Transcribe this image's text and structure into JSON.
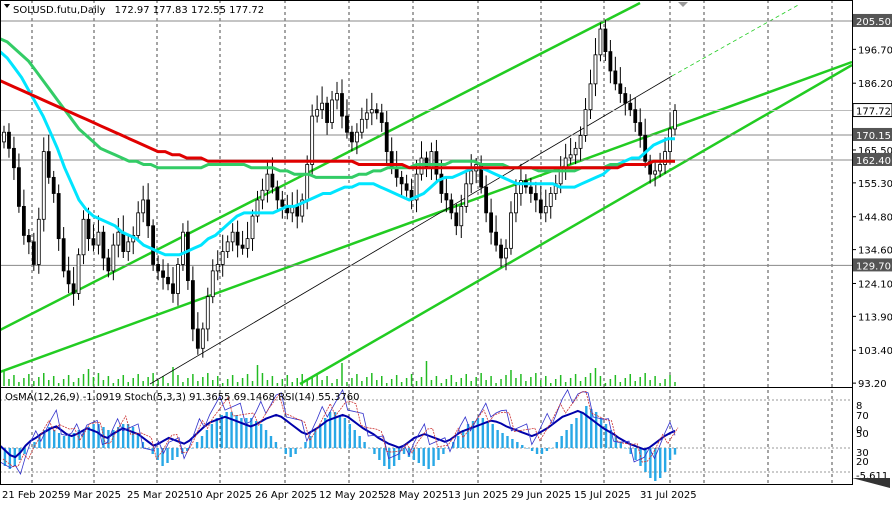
{
  "header": {
    "symbol": "SOLUSD.futu,Daily",
    "ohlc": "172.97 177.83 172.55 177.72"
  },
  "osc_header": "OsMA(12,26,9) -1.0919  Stoch(5,3,3) 91.3655 69.1468  RSI(14) 55.3760",
  "colors": {
    "up": "#000000",
    "down": "#000000",
    "ma_fast": "#00e5ff",
    "ma_mid": "#33cc66",
    "ma_slow": "#e00000",
    "channel": "#22cc22",
    "osma": "#29a8e6",
    "rsi": "#0000aa",
    "stoch_main": "#3333cc",
    "stoch_signal": "#cc3333",
    "tag_bg": "#555555",
    "volume": "#22bb22"
  },
  "chart_data": [
    {
      "type": "candlestick",
      "title": "SOLUSD.futu,Daily",
      "price_axis": [
        "205.50",
        "196.70",
        "186.20",
        "177.72",
        "170.15",
        "165.50",
        "162.40",
        "155.30",
        "144.80",
        "134.60",
        "129.70",
        "124.10",
        "113.90",
        "103.40",
        "93.20"
      ],
      "x_ticks": [
        "21 Feb 2025",
        "9 Mar 2025",
        "25 Mar 2025",
        "10 Apr 2025",
        "26 Apr 2025",
        "12 May 2025",
        "28 May 2025",
        "13 Jun 2025",
        "29 Jun 2025",
        "15 Jul 2025",
        "31 Jul 2025"
      ],
      "ylim": [
        92,
        212
      ],
      "horizontal_levels": [
        {
          "value": 205.5,
          "label": "205.50"
        },
        {
          "value": 170.15,
          "label": "170.15"
        },
        {
          "value": 162.4,
          "label": "162.40"
        },
        {
          "value": 129.7,
          "label": "129.70"
        }
      ],
      "current_price": {
        "value": 177.72,
        "label": "177.72"
      },
      "closes": [
        171,
        166,
        160,
        148,
        139,
        137,
        130,
        144,
        165,
        157,
        152,
        138,
        128,
        124,
        121,
        133,
        144,
        138,
        136,
        140,
        132,
        128,
        136,
        140,
        134,
        137,
        139,
        146,
        150,
        142,
        130,
        128,
        126,
        124,
        121,
        130,
        140,
        125,
        110,
        104,
        110,
        120,
        128,
        130,
        134,
        137,
        140,
        136,
        135,
        138,
        145,
        150,
        153,
        158,
        154,
        150,
        148,
        146,
        148,
        145,
        150,
        161,
        176,
        178,
        180,
        174,
        181,
        183,
        176,
        171,
        168,
        171,
        175,
        177,
        178,
        177,
        174,
        165,
        160,
        157,
        155,
        153,
        150,
        158,
        163,
        160,
        165,
        158,
        152,
        150,
        146,
        142,
        148,
        155,
        159,
        161,
        154,
        146,
        140,
        136,
        132,
        135,
        146,
        152,
        156,
        154,
        152,
        150,
        146,
        148,
        152,
        155,
        160,
        163,
        164,
        166,
        170,
        178,
        186,
        195,
        203,
        196,
        190,
        186,
        183,
        180,
        178,
        174,
        170,
        162,
        158,
        159,
        161,
        165,
        172,
        177.72
      ],
      "series": [
        {
          "name": "MA fast",
          "values": [
            196,
            194,
            191,
            188,
            184,
            180,
            176,
            171,
            166,
            160,
            155,
            150,
            147,
            145,
            144,
            143,
            142,
            140,
            139,
            138,
            136,
            135,
            134,
            133,
            133,
            133,
            134,
            135,
            136,
            138,
            139,
            141,
            143,
            145,
            146,
            146,
            146,
            146,
            146,
            147,
            148,
            148,
            149,
            150,
            151,
            152,
            152,
            153,
            154,
            154,
            155,
            155,
            155,
            154,
            153,
            152,
            151,
            150,
            151,
            152,
            154,
            156,
            157,
            157,
            158,
            159,
            160,
            160,
            159,
            158,
            157,
            156,
            155,
            155,
            155,
            155,
            155,
            155,
            154,
            154,
            154,
            155,
            156,
            157,
            158,
            160,
            161,
            162,
            163,
            163,
            165,
            167,
            168,
            169,
            169
          ]
        },
        {
          "name": "MA mid",
          "values": [
            200,
            199,
            197,
            195,
            193,
            190,
            187,
            184,
            181,
            178,
            175,
            172,
            170,
            168,
            166,
            165,
            164,
            163,
            162,
            162,
            161,
            161,
            160,
            160,
            160,
            160,
            160,
            160,
            160,
            161,
            161,
            161,
            161,
            161,
            161,
            160,
            160,
            160,
            160,
            159,
            159,
            158,
            158,
            158,
            157,
            157,
            157,
            157,
            157,
            157,
            158,
            158,
            159,
            159,
            160,
            160,
            160,
            160,
            161,
            161,
            161,
            161,
            161,
            162,
            162,
            162,
            162,
            161,
            161,
            161,
            161,
            160,
            160,
            160,
            160,
            159,
            159,
            159,
            159,
            159,
            159,
            160,
            160,
            160,
            160,
            161,
            161,
            161,
            161,
            161,
            161,
            162,
            162,
            162,
            162
          ]
        },
        {
          "name": "MA slow",
          "values": [
            187,
            186,
            185,
            184,
            183,
            182,
            181,
            180,
            179,
            178,
            177,
            176,
            175,
            174,
            173,
            172,
            171,
            170,
            169,
            168,
            167,
            166,
            165,
            165,
            164,
            164,
            163,
            163,
            163,
            162,
            162,
            162,
            162,
            162,
            162,
            162,
            162,
            162,
            162,
            162,
            162,
            162,
            162,
            162,
            162,
            162,
            162,
            162,
            162,
            162,
            161,
            161,
            161,
            161,
            161,
            161,
            161,
            160,
            160,
            160,
            160,
            160,
            160,
            160,
            160,
            160,
            160,
            160,
            160,
            160,
            160,
            160,
            160,
            160,
            160,
            160,
            160,
            160,
            160,
            160,
            160,
            160,
            160,
            160,
            160,
            160,
            160,
            161,
            161,
            161,
            161,
            162,
            162,
            162,
            162
          ]
        }
      ]
    },
    {
      "type": "oscillator",
      "title": "OsMA(12,26,9) Stoch(5,3,3) RSI(14)",
      "axis_labels": [
        "8",
        "70",
        "50",
        "0",
        "30",
        "20",
        "-5.611"
      ],
      "ylim": [
        -6,
        10
      ],
      "osma": [
        -2,
        -3,
        -3.5,
        -3,
        -2,
        -1,
        0,
        1,
        2,
        3,
        3.5,
        3,
        2.5,
        2,
        2,
        2.5,
        3,
        3,
        3.5,
        4,
        4,
        3.5,
        3,
        3,
        3.5,
        4,
        4,
        3.5,
        2.5,
        1,
        0,
        -1,
        -2,
        -3,
        -2.5,
        -2,
        -1.5,
        -1,
        -0.5,
        0,
        1,
        2,
        3,
        4,
        5,
        5.5,
        6,
        6,
        5.5,
        5,
        5,
        5,
        4.5,
        4,
        3,
        2,
        1,
        0,
        -1,
        -1.5,
        -1,
        0,
        1,
        2,
        3,
        4,
        5,
        6,
        6,
        5.5,
        5,
        4,
        3,
        2,
        1,
        0,
        -1,
        -2,
        -3,
        -3.5,
        -3,
        -2,
        -1,
        -1.5,
        -2,
        -2.5,
        -3,
        -3.5,
        -3,
        -2,
        -1,
        0,
        1,
        2,
        3,
        4,
        4.5,
        5,
        5,
        4.5,
        4,
        3,
        2.5,
        2,
        1.5,
        1,
        0.5,
        0,
        -0.5,
        -1,
        -1,
        -0.5,
        0,
        1,
        2,
        3,
        4,
        5,
        6,
        7,
        6.5,
        6,
        5,
        4,
        3,
        2,
        1,
        0,
        -1,
        -2,
        -3,
        -4,
        -5,
        -5.5,
        -5,
        -4,
        -2,
        -1.1
      ],
      "rsi": [
        40,
        35,
        30,
        28,
        33,
        40,
        45,
        48,
        52,
        55,
        58,
        60,
        56,
        52,
        50,
        52,
        55,
        58,
        56,
        54,
        50,
        48,
        52,
        55,
        58,
        56,
        54,
        52,
        48,
        44,
        40,
        42,
        45,
        48,
        46,
        44,
        42,
        45,
        50,
        55,
        60,
        64,
        66,
        68,
        70,
        68,
        66,
        64,
        62,
        60,
        62,
        65,
        68,
        70,
        72,
        70,
        66,
        62,
        58,
        54,
        52,
        55,
        58,
        62,
        66,
        68,
        70,
        72,
        70,
        66,
        62,
        58,
        55,
        52,
        48,
        45,
        42,
        40,
        38,
        40,
        44,
        48,
        50,
        52,
        50,
        48,
        46,
        44,
        46,
        50,
        54,
        56,
        58,
        60,
        62,
        64,
        66,
        65,
        63,
        60,
        58,
        56,
        54,
        52,
        50,
        52,
        55,
        58,
        62,
        66,
        70,
        72,
        74,
        76,
        74,
        70,
        66,
        62,
        58,
        55,
        52,
        48,
        45,
        42,
        40,
        38,
        36,
        38,
        42,
        46,
        50,
        53,
        55.4
      ]
    }
  ]
}
